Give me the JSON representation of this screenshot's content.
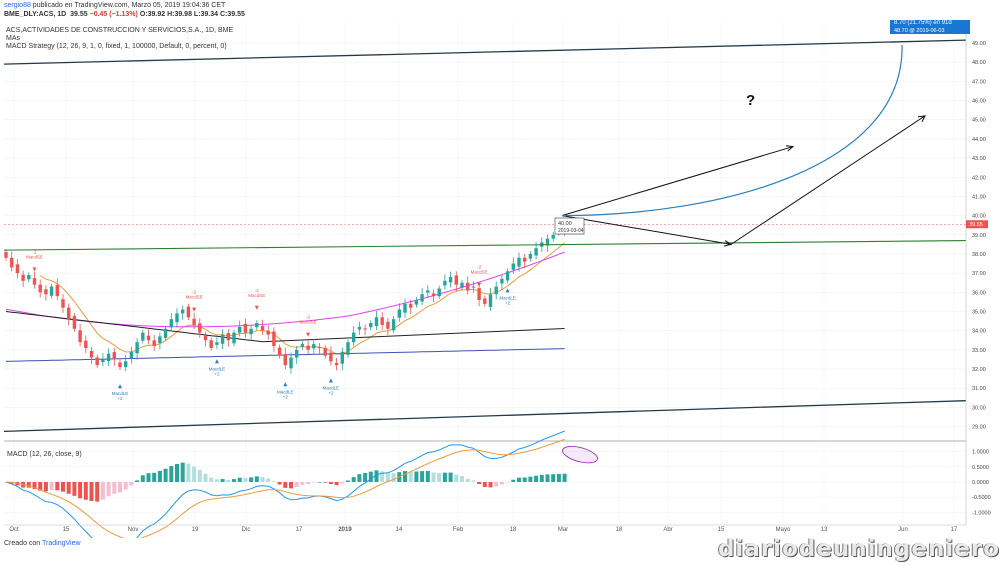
{
  "header": {
    "user": "sergio88",
    "published": " publicado en TradingView.com, Marzo 05, 2019 19:04:36 CET",
    "symbol": "BME_DLY:ACS, 1D",
    "last": "39.55",
    "change": "−0.45 (−1.13%)",
    "ohlc": "O:39.92 H:39.98 L:39.34 C:39.55"
  },
  "colors": {
    "up": "#26a69a",
    "down": "#ef5350",
    "ema_fast": "#ef9a3c",
    "ma_magenta": "#e040fb",
    "ma_black": "#222222",
    "ma_blue": "#3f51b5",
    "channel_green": "#2e7d32",
    "projection": "#2a7fbf",
    "macd_line": "#2196f3",
    "signal_line": "#ef9a3c",
    "price_tag": "#ef5350",
    "target_tag": "#1976d2"
  },
  "chart_data": {
    "type": "candlestick",
    "legend": [
      "ACS,ACTIVIDADES DE CONSTRUCCION Y SERVICIOS,S.A., 1D, BME",
      "MAs",
      "MACD Strategy (12, 26, 9, 1, 0, fixed, 1, 100000, Default, 0, percent, 0)"
    ],
    "x_labels": [
      "Oct",
      "15",
      "Nov",
      "19",
      "Dic",
      "17",
      "2019",
      "14",
      "Feb",
      "18",
      "Mar",
      "18",
      "Abr",
      "15",
      "Mayo",
      "13",
      "Jun",
      "17"
    ],
    "y_ticks": [
      29.0,
      30.0,
      31.0,
      32.0,
      33.0,
      34.0,
      35.0,
      36.0,
      37.0,
      38.0,
      39.0,
      40.0,
      41.0,
      42.0,
      43.0,
      44.0,
      45.0,
      46.0,
      47.0,
      48.0,
      49.0
    ],
    "y_range": [
      28.3,
      50.2
    ],
    "last_price": "39.55",
    "closes": [
      37.8,
      37.3,
      37.0,
      36.6,
      36.9,
      36.4,
      36.0,
      35.9,
      36.3,
      35.8,
      35.2,
      34.6,
      34.1,
      33.4,
      33.1,
      32.6,
      32.2,
      32.5,
      32.8,
      32.5,
      32.1,
      32.4,
      32.9,
      33.4,
      33.9,
      33.5,
      33.2,
      33.7,
      34.1,
      34.6,
      34.9,
      35.1,
      34.7,
      34.3,
      33.9,
      33.5,
      33.1,
      33.4,
      33.8,
      33.5,
      33.9,
      34.2,
      33.9,
      34.1,
      34.4,
      34.0,
      33.8,
      33.2,
      32.7,
      32.2,
      32.6,
      33.0,
      33.3,
      33.0,
      33.3,
      33.1,
      32.7,
      32.4,
      32.2,
      32.9,
      33.4,
      33.9,
      34.2,
      34.1,
      34.4,
      34.7,
      34.3,
      34.1,
      34.6,
      35.1,
      35.4,
      35.2,
      35.6,
      35.9,
      36.1,
      35.8,
      36.2,
      36.6,
      36.8,
      36.4,
      36.5,
      36.1,
      36.3,
      35.6,
      35.4,
      35.9,
      36.3,
      36.7,
      37.1,
      37.5,
      37.8,
      37.6,
      38.0,
      38.3,
      38.6,
      38.8,
      39.0,
      39.3,
      39.55
    ],
    "annotations": {
      "question_mark": "?",
      "box_price": "40.00",
      "box_date": "2019-03-04",
      "target_line1": "8.70 (21.75%) en 91d",
      "target_line2": "48.70 @ 2019-06-03"
    },
    "signals": [
      {
        "text": "MacdSE",
        "value": "-2"
      },
      {
        "text": "MacdLE",
        "value": "+2"
      },
      {
        "text": "MacdSE",
        "value": "-2"
      },
      {
        "text": "MacdLE",
        "value": "+2"
      },
      {
        "text": "MacdSE",
        "value": "-2"
      },
      {
        "text": "MacdLE",
        "value": "+2"
      },
      {
        "text": "MacdSE",
        "value": "-2"
      },
      {
        "text": "MacdLE",
        "value": "+2"
      },
      {
        "text": "MacdSE",
        "value": "-2"
      },
      {
        "text": "MacdLE",
        "value": "+2"
      }
    ],
    "macd": {
      "title": "MACD (12, 26, close, 9)",
      "y_ticks": [
        "1.0000",
        "0.5000",
        "0.0000",
        "-0.5000",
        "-1.0000"
      ],
      "y_range": [
        -1.35,
        1.25
      ]
    }
  },
  "footer": {
    "created_with": "Creado con",
    "tradingview": "TradingView",
    "watermark": "diariodeuningeniero"
  }
}
